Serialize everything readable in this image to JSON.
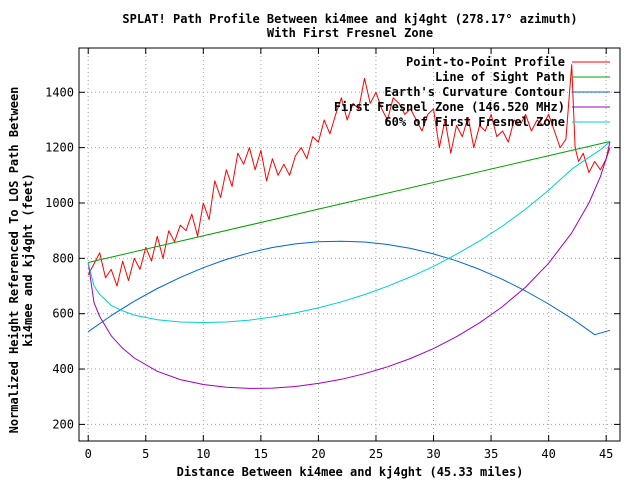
{
  "chart_data": {
    "type": "line",
    "title": "SPLAT! Path Profile Between ki4mee and kj4ght (278.17° azimuth)",
    "subtitle": "With First Fresnel Zone",
    "xlabel": "Distance Between ki4mee and kj4ght (45.33 miles)",
    "ylabel_line1": "Normalized Height Referenced To LOS Path Between",
    "ylabel_line2": "ki4mee and kj4ght (feet)",
    "xlim": [
      -0.8,
      46.2
    ],
    "ylim": [
      140,
      1560
    ],
    "x_ticks": [
      0,
      5,
      10,
      15,
      20,
      25,
      30,
      35,
      40,
      45
    ],
    "y_ticks": [
      200,
      400,
      600,
      800,
      1000,
      1200,
      1400
    ],
    "grid": true,
    "legend_position": "top-right",
    "series": [
      {
        "name": "Point-to-Point Profile",
        "color": "#ff0000",
        "x": [
          0,
          0.5,
          1,
          1.5,
          2,
          2.5,
          3,
          3.5,
          4,
          4.5,
          5,
          5.5,
          6,
          6.5,
          7,
          7.5,
          8,
          8.5,
          9,
          9.5,
          10,
          10.5,
          11,
          11.5,
          12,
          12.5,
          13,
          13.5,
          14,
          14.5,
          15,
          15.5,
          16,
          16.5,
          17,
          17.5,
          18,
          18.5,
          19,
          19.5,
          20,
          20.5,
          21,
          21.5,
          22,
          22.5,
          23,
          23.5,
          24,
          24.5,
          25,
          25.5,
          26,
          26.5,
          27,
          27.5,
          28,
          28.5,
          29,
          29.5,
          30,
          30.5,
          31,
          31.5,
          32,
          32.5,
          33,
          33.5,
          34,
          34.5,
          35,
          35.5,
          36,
          36.5,
          37,
          37.5,
          38,
          38.5,
          39,
          39.5,
          40,
          40.5,
          41,
          41.5,
          42,
          42.3,
          42.6,
          43,
          43.5,
          44,
          44.5,
          45,
          45.33
        ],
        "values": [
          740,
          780,
          820,
          730,
          760,
          700,
          790,
          720,
          800,
          760,
          840,
          790,
          880,
          800,
          900,
          860,
          920,
          900,
          960,
          880,
          1000,
          940,
          1080,
          1020,
          1120,
          1060,
          1180,
          1140,
          1200,
          1120,
          1190,
          1080,
          1160,
          1100,
          1140,
          1100,
          1170,
          1200,
          1160,
          1240,
          1220,
          1300,
          1250,
          1320,
          1380,
          1300,
          1360,
          1340,
          1450,
          1360,
          1400,
          1340,
          1300,
          1380,
          1360,
          1320,
          1340,
          1300,
          1260,
          1320,
          1340,
          1200,
          1300,
          1180,
          1280,
          1240,
          1310,
          1200,
          1280,
          1260,
          1320,
          1240,
          1260,
          1220,
          1300,
          1280,
          1320,
          1260,
          1300,
          1280,
          1320,
          1260,
          1200,
          1230,
          1500,
          1200,
          1150,
          1180,
          1110,
          1150,
          1120,
          1160,
          1200
        ]
      },
      {
        "name": "Line of Sight Path",
        "color": "#00a000",
        "x": [
          0,
          45.33
        ],
        "values": [
          785,
          1222
        ]
      },
      {
        "name": "Earth's Curvature Contour",
        "color": "#0066cc",
        "x": [
          0,
          2,
          4,
          6,
          8,
          10,
          12,
          14,
          16,
          18,
          20,
          22,
          24,
          26,
          28,
          30,
          32,
          34,
          36,
          38,
          40,
          42,
          44,
          45.33
        ],
        "values": [
          535,
          593,
          645,
          691,
          731,
          766,
          796,
          820,
          839,
          852,
          860,
          862,
          859,
          850,
          836,
          816,
          791,
          760,
          724,
          682,
          635,
          583,
          524,
          540
        ]
      },
      {
        "name": "First Fresnel Zone (146.520 MHz)",
        "color": "#a000c0",
        "x": [
          0,
          0.5,
          1,
          2,
          3,
          4,
          6,
          8,
          10,
          12,
          14,
          16,
          18,
          20,
          22,
          24,
          26,
          28,
          30,
          32,
          34,
          36,
          38,
          40,
          42,
          43.5,
          44.5,
          45,
          45.33
        ],
        "values": [
          785,
          640,
          590,
          520,
          475,
          440,
          392,
          362,
          344,
          334,
          330,
          331,
          337,
          348,
          363,
          383,
          408,
          438,
          474,
          517,
          567,
          626,
          696,
          782,
          892,
          1000,
          1095,
          1160,
          1222
        ]
      },
      {
        "name": "60% of First Fresnel Zone",
        "color": "#00d0d0",
        "x": [
          0,
          0.5,
          1,
          2,
          3,
          4,
          6,
          8,
          10,
          12,
          14,
          16,
          18,
          20,
          22,
          24,
          26,
          28,
          30,
          32,
          34,
          36,
          38,
          40,
          42,
          43.5,
          44.5,
          45,
          45.33
        ],
        "values": [
          785,
          700,
          670,
          630,
          610,
          595,
          578,
          570,
          568,
          570,
          577,
          588,
          603,
          621,
          643,
          669,
          699,
          733,
          771,
          815,
          863,
          917,
          978,
          1046,
          1122,
          1165,
          1192,
          1210,
          1222
        ]
      }
    ]
  }
}
